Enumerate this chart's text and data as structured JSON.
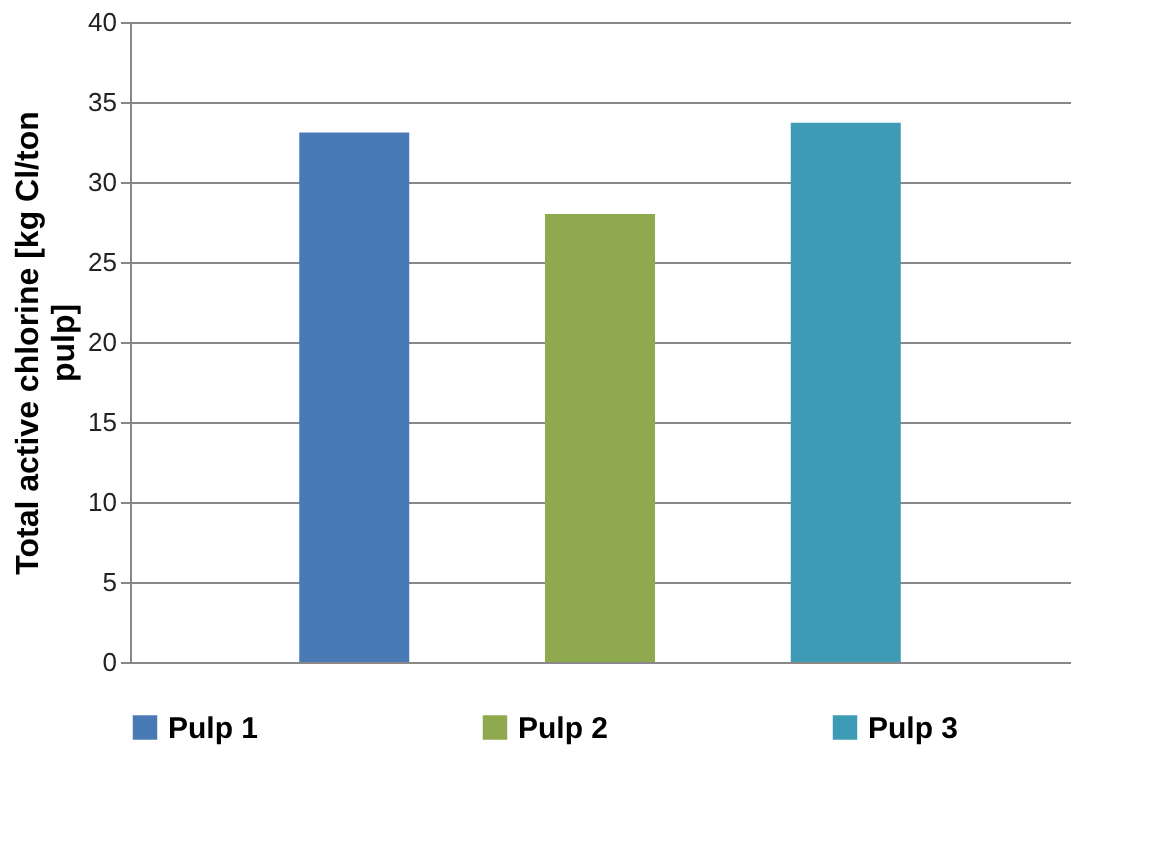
{
  "chart_data": {
    "type": "bar",
    "ylabel": "Total active chlorine [kg Cl/ton pulp]",
    "categories": [
      null
    ],
    "series": [
      {
        "name": "Pulp 1",
        "color": "#4a7ab5",
        "values": [
          33.1
        ]
      },
      {
        "name": "Pulp 2",
        "color": "#8fa94e",
        "values": [
          28.0
        ]
      },
      {
        "name": "Pulp 3",
        "color": "#3e9bb5",
        "values": [
          33.7
        ]
      }
    ],
    "ylim": [
      0,
      40
    ],
    "yticks": [
      0,
      5,
      10,
      15,
      20,
      25,
      30,
      35,
      40
    ],
    "grid": "y",
    "legend": "bottom",
    "tick_labels": "y"
  }
}
